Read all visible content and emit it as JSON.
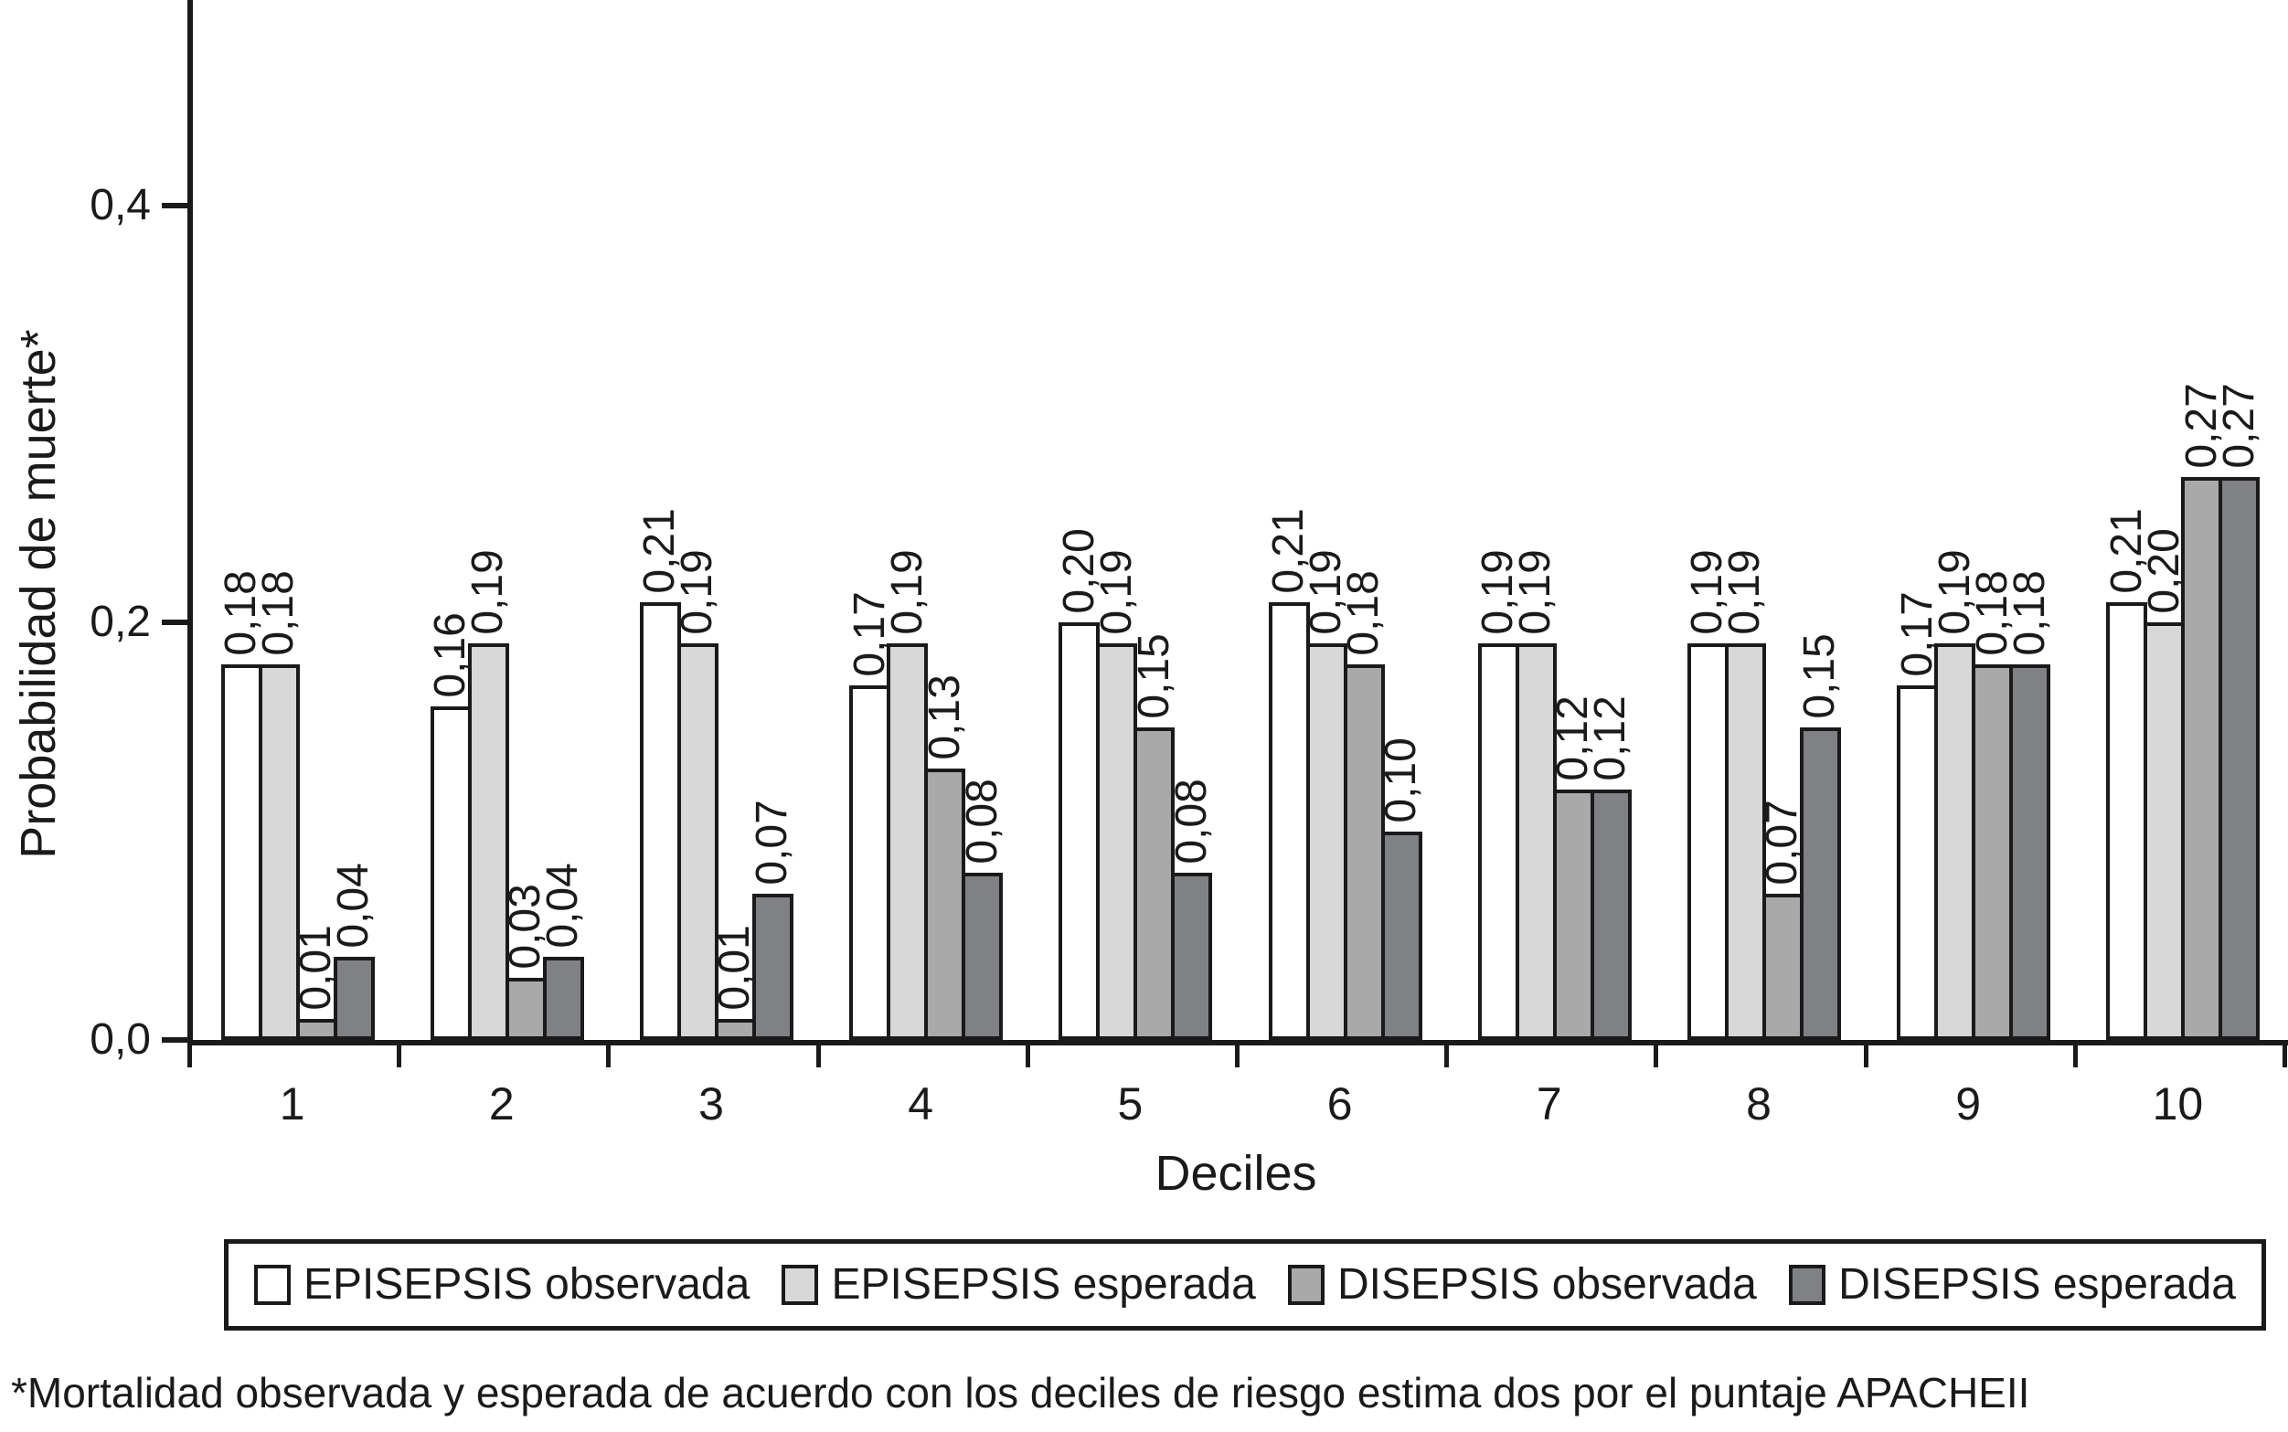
{
  "chart_data": {
    "type": "bar",
    "title": "",
    "categories": [
      "1",
      "2",
      "3",
      "4",
      "5",
      "6",
      "7",
      "8",
      "9",
      "10"
    ],
    "series": [
      {
        "name": "EPISEPSIS observada",
        "color": "#ffffff",
        "values": [
          0.18,
          0.16,
          0.21,
          0.17,
          0.2,
          0.21,
          0.19,
          0.19,
          0.17,
          0.21
        ]
      },
      {
        "name": "EPISEPSIS esperada",
        "color": "#d8d8d8",
        "values": [
          0.18,
          0.19,
          0.19,
          0.19,
          0.19,
          0.19,
          0.19,
          0.19,
          0.19,
          0.2
        ]
      },
      {
        "name": "DISEPSIS observada",
        "color": "#a9a9a9",
        "values": [
          0.01,
          0.03,
          0.01,
          0.13,
          0.15,
          0.18,
          0.12,
          0.07,
          0.18,
          0.27
        ]
      },
      {
        "name": "DISEPSIS esperada",
        "color": "#7f8184",
        "values": [
          0.04,
          0.04,
          0.07,
          0.08,
          0.08,
          0.1,
          0.12,
          0.15,
          0.18,
          0.27
        ]
      }
    ],
    "bar_labels_format": "comma-decimal",
    "xlabel": "Deciles",
    "ylabel": "Probabilidad de muerte*",
    "yticks": [
      "0,0",
      "0,2",
      "0,4"
    ],
    "ytick_values": [
      0.0,
      0.2,
      0.4
    ],
    "ylim": [
      0,
      0.499
    ],
    "grid": false,
    "legend_position": "bottom"
  },
  "footnote": "*Mortalidad observada y esperada de acuerdo con los deciles de riesgo estima dos por el puntaje APACHEII"
}
